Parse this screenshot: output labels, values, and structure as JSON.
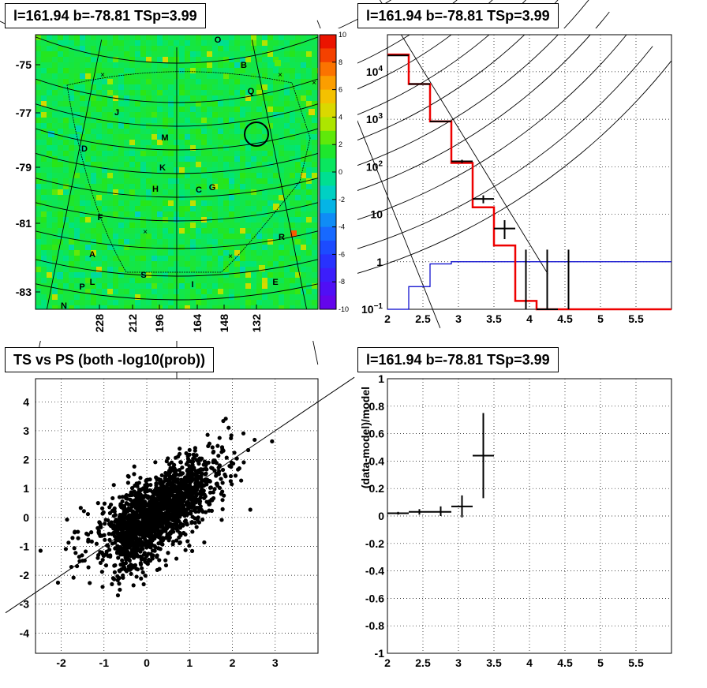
{
  "panels": {
    "top_left": {
      "title": "l=161.94 b=-78.81 TSp=3.99"
    },
    "top_right": {
      "title": "l=161.94 b=-78.81 TSp=3.99"
    },
    "bottom_left": {
      "title": "TS vs PS (both -log10(prob))"
    },
    "bottom_right": {
      "title": "l=161.94 b=-78.81 TSp=3.99"
    }
  },
  "chart_data": [
    {
      "type": "heatmap",
      "title": "l=161.94 b=-78.81 TSp=3.99",
      "y_tick_labels": [
        "-75",
        "-77",
        "-79",
        "-81",
        "-83"
      ],
      "x_tick_labels": [
        "228",
        "212",
        "196",
        "164",
        "148",
        "132"
      ],
      "colorbar": {
        "range": [
          -10,
          10
        ],
        "tick_labels": [
          "10",
          "8",
          "6",
          "4",
          "2",
          "0",
          "-2",
          "-4",
          "-6",
          "-8",
          "-10"
        ]
      },
      "source_labels": [
        "O",
        "B",
        "Q",
        "J",
        "M",
        "D",
        "K",
        "H",
        "C",
        "G",
        "F",
        "R",
        "A",
        "L",
        "P",
        "S",
        "I",
        "E",
        "N"
      ],
      "highlight": "circle near source Q region"
    },
    {
      "type": "line",
      "title": "l=161.94 b=-78.81 TSp=3.99",
      "x_tick_labels": [
        "2",
        "2.5",
        "3",
        "3.5",
        "4",
        "4.5",
        "5",
        "5.5"
      ],
      "y_tick_labels": [
        "10^-1",
        "1",
        "10",
        "10^2",
        "10^3",
        "10^4"
      ],
      "xlim": [
        2,
        6
      ],
      "ylim": [
        0.1,
        60000
      ],
      "y_scale": "log",
      "model_red": {
        "edges": [
          2.0,
          2.3,
          2.6,
          2.9,
          3.2,
          3.5,
          3.8,
          4.1,
          4.4,
          6.0
        ],
        "values": [
          23000,
          5500,
          900,
          120,
          14,
          2.2,
          0.15,
          0.1,
          0.1
        ]
      },
      "model_blue": {
        "edges": [
          2.0,
          2.3,
          2.6,
          2.9,
          3.2,
          6.0
        ],
        "values": [
          0.08,
          0.3,
          0.9,
          1.0,
          1.0
        ]
      },
      "data_points": [
        {
          "x": 2.15,
          "y": 22000,
          "xerr": 0.15,
          "ylo": 21800,
          "yhi": 22200
        },
        {
          "x": 2.45,
          "y": 5500,
          "xerr": 0.15,
          "ylo": 5450,
          "yhi": 5550
        },
        {
          "x": 2.75,
          "y": 900,
          "xerr": 0.15,
          "ylo": 880,
          "yhi": 920
        },
        {
          "x": 3.05,
          "y": 130,
          "xerr": 0.15,
          "ylo": 120,
          "yhi": 140
        },
        {
          "x": 3.35,
          "y": 21,
          "xerr": 0.15,
          "ylo": 17,
          "yhi": 25
        },
        {
          "x": 3.65,
          "y": 5,
          "xerr": 0.15,
          "ylo": 3,
          "yhi": 7.5
        },
        {
          "x": 3.95,
          "y": 0.1,
          "xerr": 0,
          "ylo": 0.1,
          "yhi": 1.8
        },
        {
          "x": 4.25,
          "y": 0.1,
          "xerr": 0.15,
          "ylo": 0.1,
          "yhi": 1.8
        },
        {
          "x": 4.55,
          "y": 0.1,
          "xerr": 0,
          "ylo": 0.1,
          "yhi": 1.8
        }
      ]
    },
    {
      "type": "scatter",
      "title": "TS vs PS (both -log10(prob))",
      "xlim": [
        -2.6,
        4
      ],
      "ylim": [
        -4.7,
        4.8
      ],
      "x_tick_labels": [
        "-2",
        "-1",
        "0",
        "1",
        "2",
        "3"
      ],
      "y_tick_labels": [
        "4",
        "3",
        "2",
        "1",
        "0",
        "-1",
        "-2",
        "-3",
        "-4"
      ],
      "reference_line": {
        "slope": 1,
        "intercept": 0
      },
      "clusters": [
        {
          "cx": 0.6,
          "cy": 0.5,
          "sx": 0.45,
          "sy": 0.7,
          "n": 900,
          "rho": 0.55
        },
        {
          "cx": -0.25,
          "cy": -0.4,
          "sx": 0.3,
          "sy": 0.75,
          "n": 700,
          "rho": 0.3
        },
        {
          "cx": 1.3,
          "cy": 1.4,
          "sx": 0.7,
          "sy": 0.8,
          "n": 140,
          "rho": 0.6
        },
        {
          "cx": -0.9,
          "cy": -0.6,
          "sx": 0.6,
          "sy": 0.7,
          "n": 110,
          "rho": 0.4
        }
      ]
    },
    {
      "type": "scatter",
      "title": "l=161.94 b=-78.81 TSp=3.99",
      "ylabel": "(data-model)/model",
      "xlim": [
        2,
        6
      ],
      "ylim": [
        -1,
        1
      ],
      "x_tick_labels": [
        "2",
        "2.5",
        "3",
        "3.5",
        "4",
        "4.5",
        "5",
        "5.5"
      ],
      "y_tick_labels": [
        "1",
        "0.8",
        "0.6",
        "0.4",
        "0.2",
        "0",
        "-0.2",
        "-0.4",
        "-0.6",
        "-0.8",
        "-1"
      ],
      "points": [
        {
          "x": 2.15,
          "y": 0.02,
          "xerr": 0.15,
          "ylo": 0.01,
          "yhi": 0.03
        },
        {
          "x": 2.45,
          "y": 0.03,
          "xerr": 0.15,
          "ylo": 0.01,
          "yhi": 0.05
        },
        {
          "x": 2.75,
          "y": 0.03,
          "xerr": 0.15,
          "ylo": 0.0,
          "yhi": 0.07
        },
        {
          "x": 3.05,
          "y": 0.07,
          "xerr": 0.15,
          "ylo": -0.01,
          "yhi": 0.15
        },
        {
          "x": 3.35,
          "y": 0.44,
          "xerr": 0.15,
          "ylo": 0.13,
          "yhi": 0.75
        }
      ]
    }
  ]
}
